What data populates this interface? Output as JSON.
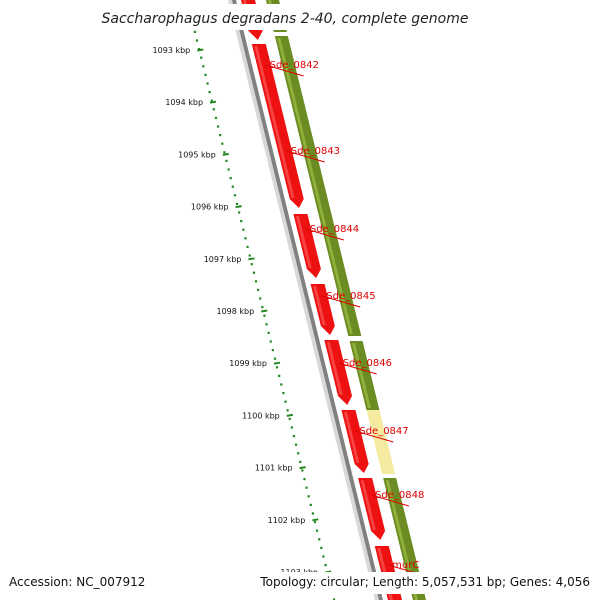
{
  "title": "Saccharophagus degradans 2-40, complete genome",
  "accession": "Accession: NC_007912",
  "summary": "Topology: circular; Length: 5,057,531 bp; Genes: 4,056",
  "ticks": [
    "1093 kbp",
    "1094 kbp",
    "1095 kbp",
    "1096 kbp",
    "1097 kbp",
    "1098 kbp",
    "1099 kbp",
    "1100 kbp",
    "1101 kbp",
    "1102 kbp",
    "1103 kbp"
  ],
  "genes": [
    "Sde_0842",
    "Sde_0843",
    "Sde_0844",
    "Sde_0845",
    "Sde_0846",
    "Sde_0847",
    "Sde_0848",
    "murC"
  ],
  "colors": {
    "cds": "#ee1111",
    "cds_highlight": "#ff6666",
    "cog": "#6b8c23",
    "cog_highlight": "#8fb03a",
    "cog_unknown": "#f5eba0",
    "backbone": "#808080",
    "ruler": "#228822",
    "label": "#dd0000"
  },
  "chart_data": {
    "type": "genome-map",
    "scale_unit": "kbp",
    "scale_ticks": [
      1093,
      1094,
      1095,
      1096,
      1097,
      1098,
      1099,
      1100,
      1101,
      1102,
      1103
    ],
    "labeled_genes": [
      "Sde_0842",
      "Sde_0843",
      "Sde_0844",
      "Sde_0845",
      "Sde_0846",
      "Sde_0847",
      "Sde_0848",
      "murC"
    ]
  }
}
